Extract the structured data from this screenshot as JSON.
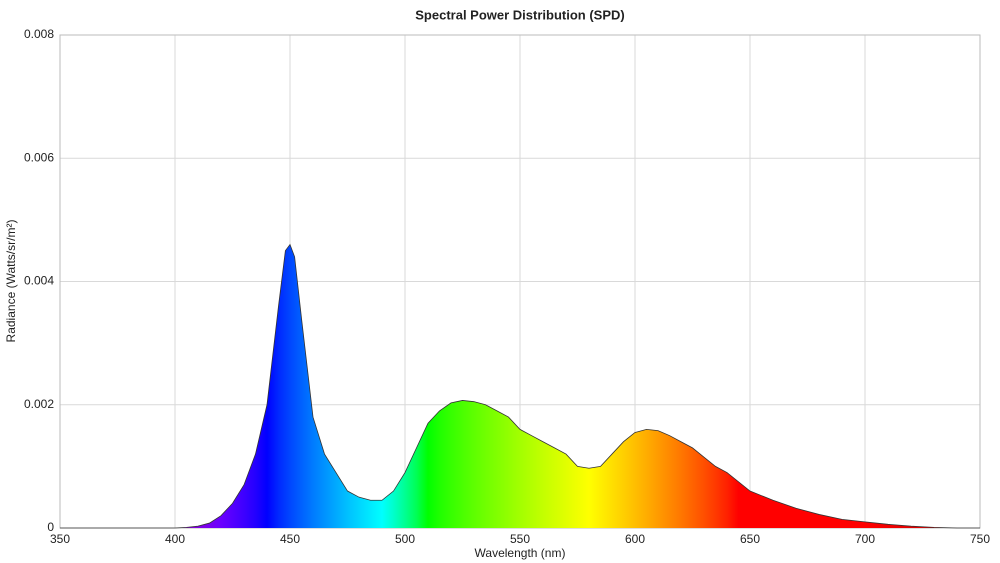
{
  "chart_data": {
    "type": "area",
    "title": "Spectral Power Distribution (SPD)",
    "xlabel": "Wavelength (nm)",
    "ylabel": "Radiance (Watts/sr/m²)",
    "x": [
      350,
      360,
      370,
      380,
      390,
      400,
      405,
      410,
      415,
      420,
      425,
      430,
      435,
      440,
      445,
      448,
      450,
      452,
      455,
      460,
      465,
      470,
      475,
      480,
      485,
      490,
      495,
      500,
      505,
      510,
      515,
      520,
      525,
      530,
      535,
      540,
      545,
      550,
      555,
      560,
      565,
      570,
      575,
      580,
      585,
      590,
      595,
      600,
      605,
      610,
      615,
      620,
      625,
      630,
      635,
      640,
      645,
      650,
      660,
      670,
      680,
      690,
      700,
      710,
      720,
      730,
      740,
      750
    ],
    "y": [
      0,
      0,
      0,
      0,
      0,
      0,
      1e-05,
      3e-05,
      8e-05,
      0.0002,
      0.0004,
      0.0007,
      0.0012,
      0.002,
      0.0036,
      0.0045,
      0.0046,
      0.0044,
      0.0034,
      0.0018,
      0.0012,
      0.0009,
      0.0006,
      0.0005,
      0.00045,
      0.00045,
      0.0006,
      0.0009,
      0.0013,
      0.0017,
      0.0019,
      0.00203,
      0.00207,
      0.00205,
      0.002,
      0.0019,
      0.0018,
      0.0016,
      0.0015,
      0.0014,
      0.0013,
      0.0012,
      0.001,
      0.00097,
      0.001,
      0.0012,
      0.0014,
      0.00155,
      0.0016,
      0.00158,
      0.0015,
      0.0014,
      0.0013,
      0.00115,
      0.001,
      0.0009,
      0.00075,
      0.0006,
      0.00045,
      0.00032,
      0.00022,
      0.00014,
      0.0001,
      6e-05,
      3e-05,
      1e-05,
      0,
      0
    ],
    "xlim": [
      350,
      750
    ],
    "xticks": [
      350,
      400,
      450,
      500,
      550,
      600,
      650,
      700,
      750
    ],
    "ylim": [
      0,
      0.008
    ],
    "yticks": [
      0,
      0.002,
      0.004,
      0.006,
      0.008
    ],
    "grid": true,
    "color": "#333333"
  }
}
